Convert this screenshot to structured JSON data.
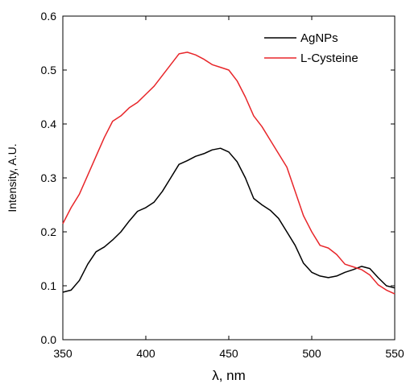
{
  "chart_data": {
    "type": "line",
    "xlabel": "λ, nm",
    "ylabel": "Intensity, A.U.",
    "xlim": [
      350,
      550
    ],
    "ylim": [
      0.0,
      0.6
    ],
    "xticks": [
      "350",
      "400",
      "450",
      "500",
      "550"
    ],
    "yticks": [
      "0.0",
      "0.1",
      "0.2",
      "0.3",
      "0.4",
      "0.5",
      "0.6"
    ],
    "grid": false,
    "legend_position": "top-right",
    "series": [
      {
        "name": "AgNPs",
        "color": "#000000",
        "x": [
          350,
          355,
          360,
          365,
          370,
          375,
          380,
          385,
          390,
          395,
          400,
          405,
          410,
          415,
          420,
          425,
          430,
          435,
          440,
          445,
          450,
          455,
          460,
          465,
          470,
          475,
          480,
          485,
          490,
          495,
          500,
          505,
          510,
          515,
          520,
          525,
          530,
          535,
          540,
          545,
          550
        ],
        "values": [
          0.088,
          0.092,
          0.11,
          0.14,
          0.163,
          0.172,
          0.185,
          0.2,
          0.22,
          0.238,
          0.245,
          0.255,
          0.275,
          0.3,
          0.325,
          0.332,
          0.34,
          0.345,
          0.352,
          0.355,
          0.348,
          0.33,
          0.3,
          0.262,
          0.25,
          0.24,
          0.225,
          0.2,
          0.175,
          0.142,
          0.125,
          0.118,
          0.115,
          0.118,
          0.125,
          0.13,
          0.136,
          0.132,
          0.115,
          0.1,
          0.096
        ]
      },
      {
        "name": "L-Cysteine",
        "color": "#e8262a",
        "x": [
          350,
          355,
          360,
          365,
          370,
          375,
          380,
          385,
          390,
          395,
          400,
          405,
          410,
          415,
          420,
          425,
          430,
          435,
          440,
          445,
          450,
          455,
          460,
          465,
          470,
          475,
          480,
          485,
          490,
          495,
          500,
          505,
          510,
          515,
          520,
          525,
          530,
          535,
          540,
          545,
          550
        ],
        "values": [
          0.215,
          0.245,
          0.27,
          0.305,
          0.34,
          0.375,
          0.405,
          0.415,
          0.43,
          0.44,
          0.455,
          0.47,
          0.49,
          0.51,
          0.53,
          0.533,
          0.528,
          0.52,
          0.51,
          0.505,
          0.5,
          0.48,
          0.45,
          0.415,
          0.395,
          0.37,
          0.345,
          0.32,
          0.275,
          0.23,
          0.2,
          0.175,
          0.17,
          0.158,
          0.14,
          0.135,
          0.13,
          0.12,
          0.102,
          0.092,
          0.085
        ]
      }
    ]
  }
}
